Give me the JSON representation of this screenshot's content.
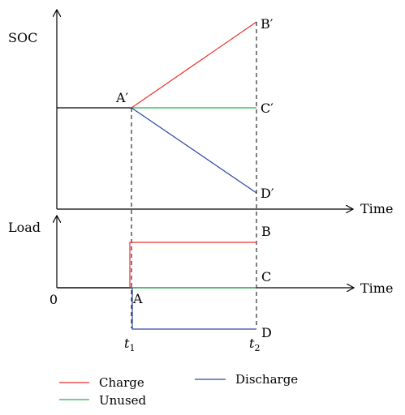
{
  "upper_panel": {
    "ylabel": "SOC",
    "xlabel": "Time",
    "point_labels": {
      "a_prime": "A′",
      "b_prime": "B′",
      "c_prime": "C′",
      "d_prime": "D′"
    }
  },
  "lower_panel": {
    "ylabel": "Load",
    "xlabel": "Time",
    "origin": "0",
    "point_labels": {
      "a": "A",
      "b": "B",
      "c": "C",
      "d": "D"
    },
    "ticks": {
      "t1_base": "t",
      "t1_sub": "1",
      "t2_base": "t",
      "t2_sub": "2"
    }
  },
  "legend": {
    "charge": "Charge",
    "unused": "Unused",
    "discharge": "Discharge"
  },
  "colors": {
    "charge": "#e8312f",
    "unused": "#22b14c",
    "discharge": "#2b48a0",
    "axis": "#000000"
  }
}
